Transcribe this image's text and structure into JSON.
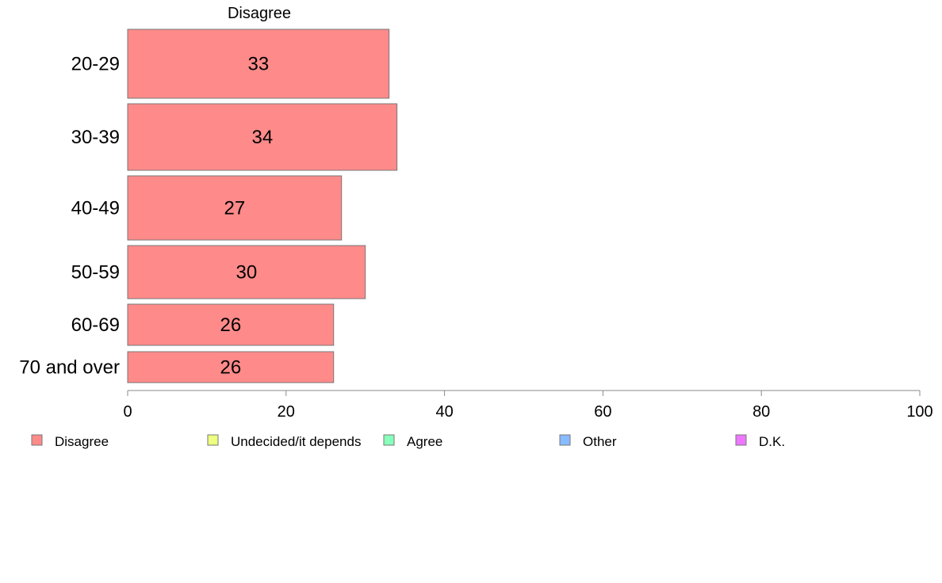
{
  "chart_data": {
    "type": "bar",
    "orientation": "horizontal",
    "panel_title": "Disagree",
    "categories": [
      "20-29",
      "30-39",
      "40-49",
      "50-59",
      "60-69",
      "70 and over"
    ],
    "series": [
      {
        "name": "Disagree",
        "values": [
          33,
          34,
          27,
          30,
          26,
          26
        ]
      }
    ],
    "data_labels": [
      "33",
      "34",
      "27",
      "30",
      "26",
      "26"
    ],
    "x_ticks": [
      "0",
      "20",
      "40",
      "60",
      "80",
      "100"
    ],
    "xlim": [
      0,
      100
    ],
    "xlabel": "",
    "ylabel": "",
    "grid": false,
    "legend_position": "bottom",
    "legend": [
      {
        "label": "Disagree",
        "color": "#ff8a8a"
      },
      {
        "label": "Undecided/it depends",
        "color": "#eeff80"
      },
      {
        "label": "Agree",
        "color": "#88ffbb"
      },
      {
        "label": "Other",
        "color": "#88bbff"
      },
      {
        "label": "D.K.",
        "color": "#ee77ff"
      }
    ]
  }
}
